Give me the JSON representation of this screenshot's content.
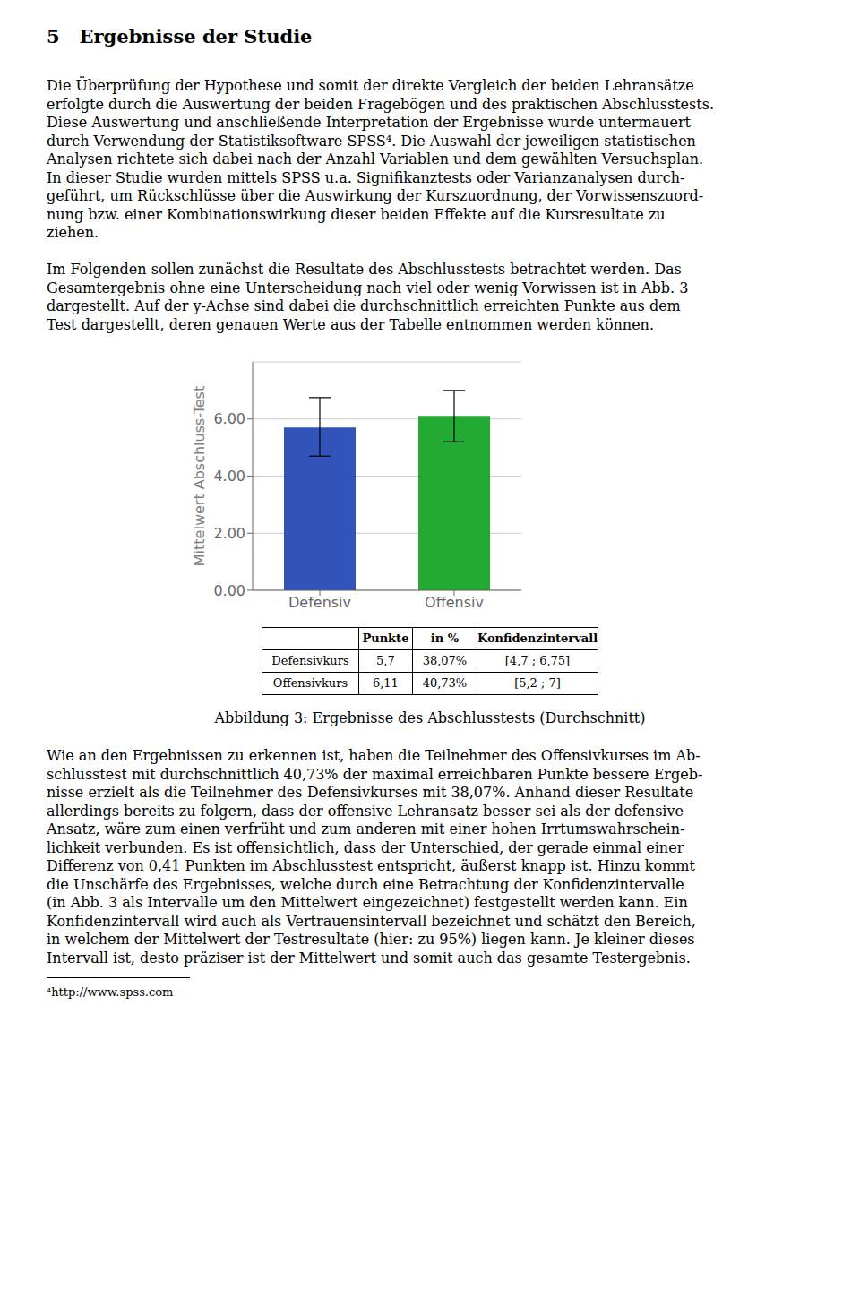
{
  "heading": "5   Ergebnisse der Studie",
  "paragraphs_before": [
    [
      "Die Überprüfung der Hypothese und somit der direkte Vergleich der beiden Lehransätze",
      "erfolgte durch die Auswertung der beiden Fragebögen und des praktischen Abschlusstests.",
      "Diese Auswertung und anschließende Interpretation der Ergebnisse wurde untermauert",
      "durch Verwendung der Statistiksoftware SPSS⁴. Die Auswahl der jeweiligen statistischen",
      "Analysen richtete sich dabei nach der Anzahl Variablen und dem gewählten Versuchsplan.",
      "In dieser Studie wurden mittels SPSS u.a. Signifikanztests oder Varianzanalysen durch-",
      "geführt, um Rückschlüsse über die Auswirkung der Kurszuordnung, der Vorwissenszuord-",
      "nung bzw. einer Kombinationswirkung dieser beiden Effekte auf die Kursresultate zu",
      "ziehen."
    ],
    [
      "Im Folgenden sollen zunächst die Resultate des Abschlusstests betrachtet werden. Das",
      "Gesamtergebnis ohne eine Unterscheidung nach viel oder wenig Vorwissen ist in Abb. 3",
      "dargestellt. Auf der y-Achse sind dabei die durchschnittlich erreichten Punkte aus dem",
      "Test dargestellt, deren genauen Werte aus der Tabelle entnommen werden können."
    ]
  ],
  "chart_data": {
    "type": "bar",
    "categories": [
      "Defensiv",
      "Offensiv"
    ],
    "values": [
      5.7,
      6.11
    ],
    "colors": [
      "#3355bb",
      "#22aa33"
    ],
    "error_lower": [
      1.0,
      0.91
    ],
    "error_upper": [
      1.05,
      0.89
    ],
    "ylabel": "Mittelwert Abschluss-Test",
    "ylim": [
      0,
      8.0
    ],
    "yticks": [
      {
        "value": 0.0,
        "label": "0.00"
      },
      {
        "value": 2.0,
        "label": "2.00"
      },
      {
        "value": 4.0,
        "label": "4.00"
      },
      {
        "value": 6.0,
        "label": "6.00"
      }
    ],
    "grid": true
  },
  "table": {
    "columns": [
      "Punkte",
      "in %",
      "Konfidenzintervall"
    ],
    "rows": [
      {
        "label": "Defensivkurs",
        "cells": [
          "5,7",
          "38,07%",
          "[4,7 ; 6,75]"
        ]
      },
      {
        "label": "Offensivkurs",
        "cells": [
          "6,11",
          "40,73%",
          "[5,2 ; 7]"
        ]
      }
    ]
  },
  "caption": "Abbildung 3: Ergebnisse des Abschlusstests (Durchschnitt)",
  "paragraphs_after": [
    [
      "Wie an den Ergebnissen zu erkennen ist, haben die Teilnehmer des Offensivkurses im Ab-",
      "schlusstest mit durchschnittlich 40,73% der maximal erreichbaren Punkte bessere Ergeb-",
      "nisse erzielt als die Teilnehmer des Defensivkurses mit 38,07%. Anhand dieser Resultate",
      "allerdings bereits zu folgern, dass der offensive Lehransatz besser sei als der defensive",
      "Ansatz, wäre zum einen verfrüht und zum anderen mit einer hohen Irrtumswahrschein-",
      "lichkeit verbunden. Es ist offensichtlich, dass der Unterschied, der gerade einmal einer",
      "Differenz von 0,41 Punkten im Abschlusstest entspricht, äußerst knapp ist. Hinzu kommt",
      "die Unschärfe des Ergebnisses, welche durch eine Betrachtung der Konfidenzintervalle",
      "(in Abb. 3 als Intervalle um den Mittelwert eingezeichnet) festgestellt werden kann. Ein",
      "Konfidenzintervall wird auch als Vertrauensintervall bezeichnet und schätzt den Bereich,",
      "in welchem der Mittelwert der Testresultate (hier: zu 95%) liegen kann. Je kleiner dieses",
      "Intervall ist, desto präziser ist der Mittelwert und somit auch das gesamte Testergebnis."
    ]
  ],
  "footnote": "⁴http://www.spss.com"
}
